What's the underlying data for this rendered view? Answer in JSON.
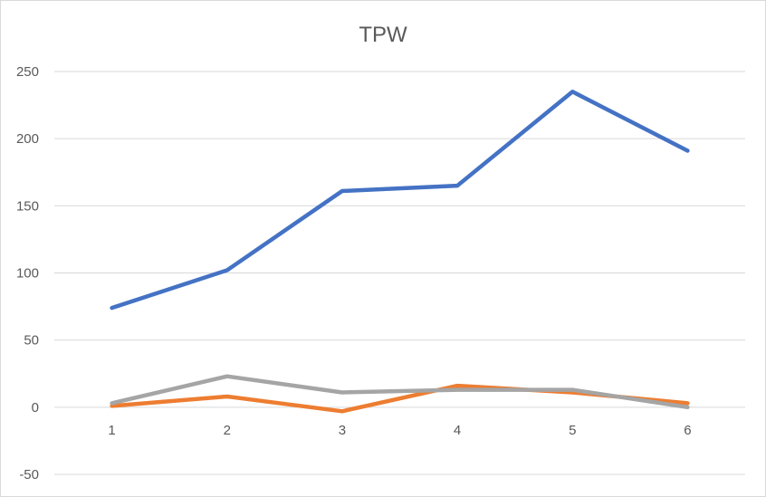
{
  "chart_data": {
    "type": "line",
    "title": "TPW",
    "xlabel": "",
    "ylabel": "",
    "categories": [
      "1",
      "2",
      "3",
      "4",
      "5",
      "6"
    ],
    "ylim": [
      -50,
      250
    ],
    "ytick_step": 50,
    "yticks": [
      "-50",
      "0",
      "50",
      "100",
      "150",
      "200",
      "250"
    ],
    "grid": true,
    "legend": "none",
    "series": [
      {
        "color": "#4472c4",
        "values": [
          74,
          102,
          161,
          165,
          235,
          191
        ]
      },
      {
        "color": "#ed7d31",
        "values": [
          1,
          8,
          -3,
          16,
          11,
          3
        ]
      },
      {
        "color": "#a5a5a5",
        "values": [
          3,
          23,
          11,
          13,
          13,
          0
        ]
      }
    ]
  }
}
